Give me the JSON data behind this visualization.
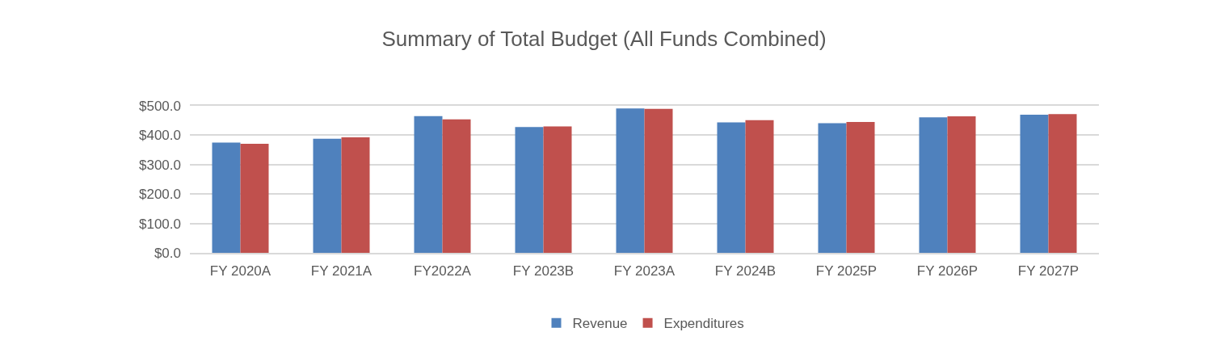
{
  "chart_data": {
    "type": "bar",
    "title": "Summary of Total Budget (All Funds Combined)",
    "categories": [
      "FY 2020A",
      "FY 2021A",
      "FY2022A",
      "FY 2023B",
      "FY 2023A",
      "FY 2024B",
      "FY 2025P",
      "FY 2026P",
      "FY 2027P"
    ],
    "series": [
      {
        "name": "Revenue",
        "color": "#4f81bd",
        "values": [
          375,
          388,
          465,
          428,
          491,
          444,
          441,
          461,
          470
        ]
      },
      {
        "name": "Expenditures",
        "color": "#c0504d",
        "values": [
          371,
          393,
          454,
          430,
          490,
          451,
          445,
          464,
          472
        ]
      }
    ],
    "ylim": [
      0,
      500
    ],
    "yticks": [
      {
        "value": 0,
        "label": "$0.0"
      },
      {
        "value": 100,
        "label": "$100.0"
      },
      {
        "value": 200,
        "label": "$200.0"
      },
      {
        "value": 300,
        "label": "$300.0"
      },
      {
        "value": 400,
        "label": "$400.0"
      },
      {
        "value": 500,
        "label": "$500.0"
      }
    ],
    "grid": "y",
    "legend": "bottom"
  }
}
